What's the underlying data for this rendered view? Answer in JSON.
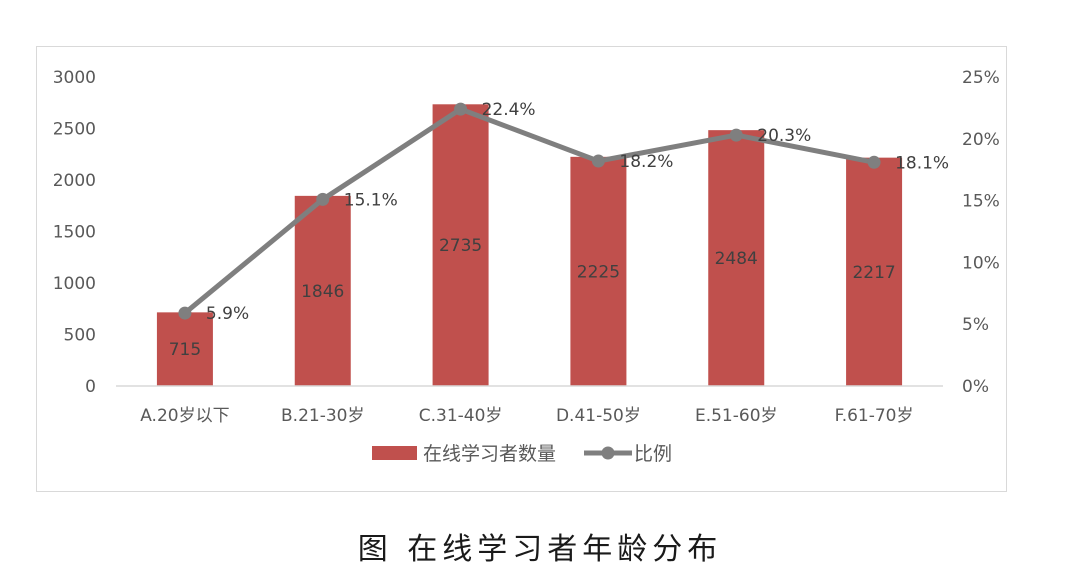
{
  "caption": "图 在线学习者年龄分布",
  "chart_data": {
    "type": "bar+line",
    "categories": [
      "A.20岁以下",
      "B.21-30岁",
      "C.31-40岁",
      "D.41-50岁",
      "E.51-60岁",
      "F.61-70岁"
    ],
    "series": [
      {
        "name": "在线学习者数量",
        "type": "bar",
        "axis": "left",
        "color": "#c0504d",
        "values": [
          715,
          1846,
          2735,
          2225,
          2484,
          2217
        ],
        "labels": [
          "715",
          "1846",
          "2735",
          "2225",
          "2484",
          "2217"
        ]
      },
      {
        "name": "比例",
        "type": "line",
        "axis": "right",
        "color": "#7f7f7f",
        "values": [
          5.9,
          15.1,
          22.4,
          18.2,
          20.3,
          18.1
        ],
        "labels": [
          "5.9%",
          "15.1%",
          "22.4%",
          "18.2%",
          "20.3%",
          "18.1%"
        ]
      }
    ],
    "y_left": {
      "min": 0,
      "max": 3000,
      "ticks": [
        "0",
        "500",
        "1000",
        "1500",
        "2000",
        "2500",
        "3000"
      ]
    },
    "y_right": {
      "min": 0,
      "max": 25,
      "ticks": [
        "0%",
        "5%",
        "10%",
        "15%",
        "20%",
        "25%"
      ]
    },
    "grid": false,
    "legend_position": "bottom"
  }
}
